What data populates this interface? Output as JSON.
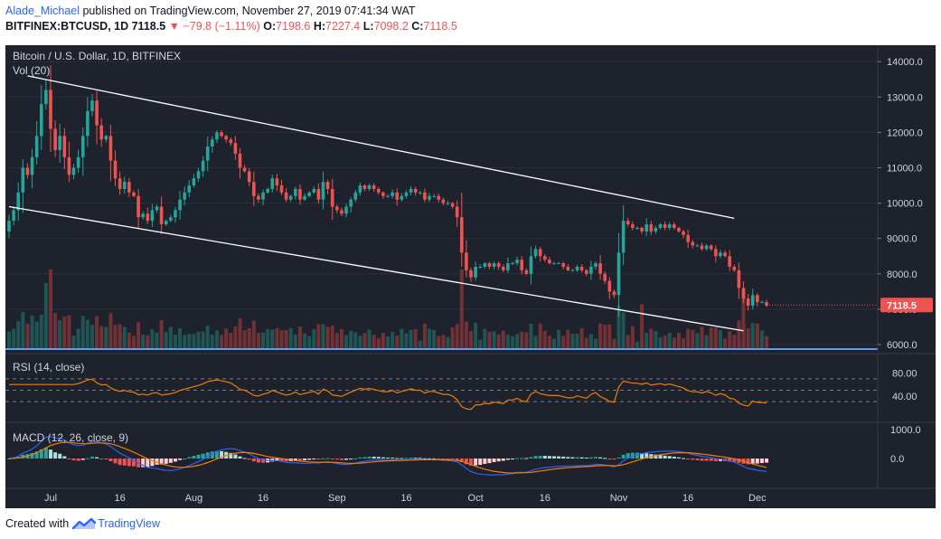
{
  "header": {
    "author": "Alade_Michael",
    "published_text": "published on TradingView.com, November 27, 2019 07:41:34 WAT",
    "symbol_line": "BITFINEX:BTCUSD, 1D",
    "last": "7118.5",
    "change": "▼ −79.8 (−1.11%)",
    "open_label": "O:",
    "open": "7198.6",
    "high_label": "H:",
    "high": "7227.4",
    "low_label": "L:",
    "low": "7098.2",
    "close_label": "C:",
    "close": "7118.5"
  },
  "footer": {
    "created_with": "Created with",
    "brand": "TradingView"
  },
  "colors": {
    "bg": "#1e222d",
    "up": "#26a69a",
    "down": "#ef5350",
    "rsi": "#f57c00",
    "macd": "#2962ff",
    "signal": "#f57c00",
    "channel": "#ffffff",
    "price_label": "#ef5350"
  },
  "chart_data": {
    "type": "candlestick",
    "title": "Bitcoin / U.S. Dollar, 1D, BITFINEX",
    "volume_label": "Vol (20)",
    "price_axis": {
      "ticks": [
        "14000.0",
        "13000.0",
        "12000.0",
        "11000.0",
        "10000.0",
        "9000.0",
        "8000.0",
        "7000.0",
        "6000.0"
      ],
      "ylim": [
        6000,
        14500
      ],
      "last_price_label": "7118.5"
    },
    "x_axis": {
      "ticks": [
        "Jul",
        "16",
        "Aug",
        "16",
        "Sep",
        "16",
        "Oct",
        "16",
        "Nov",
        "16",
        "Dec"
      ],
      "start_date": "2019-06-22"
    },
    "closes": [
      9500,
      9800,
      10300,
      11000,
      10800,
      11300,
      11900,
      12800,
      13200,
      12100,
      11500,
      11900,
      11300,
      10800,
      11000,
      11300,
      11900,
      12600,
      12900,
      12200,
      11800,
      11900,
      11200,
      10700,
      10400,
      10600,
      10300,
      10200,
      9600,
      9700,
      9500,
      9800,
      9900,
      9400,
      9500,
      9600,
      9800,
      10100,
      10300,
      10500,
      10700,
      10900,
      11200,
      11600,
      11800,
      12000,
      11900,
      11800,
      11700,
      11400,
      11000,
      10900,
      10600,
      10200,
      10100,
      10300,
      10400,
      10700,
      10500,
      10300,
      10100,
      10200,
      10400,
      10100,
      10200,
      10300,
      10400,
      10100,
      10600,
      10400,
      9900,
      9800,
      9700,
      9900,
      10100,
      10300,
      10500,
      10400,
      10500,
      10400,
      10300,
      10200,
      10200,
      10300,
      10100,
      10200,
      10300,
      10400,
      10300,
      10300,
      10100,
      10200,
      10200,
      10100,
      10000,
      10000,
      9900,
      9600,
      8600,
      8100,
      7900,
      8200,
      8200,
      8300,
      8200,
      8300,
      8200,
      8100,
      8300,
      8300,
      8400,
      8100,
      8000,
      8500,
      8700,
      8500,
      8400,
      8300,
      8300,
      8300,
      8200,
      8100,
      8100,
      8200,
      8100,
      8000,
      8200,
      8300,
      8000,
      7800,
      7500,
      7400,
      8600,
      9500,
      9400,
      9300,
      9300,
      9200,
      9400,
      9200,
      9300,
      9400,
      9300,
      9400,
      9300,
      9200,
      9100,
      8900,
      8800,
      8800,
      8700,
      8800,
      8700,
      8500,
      8600,
      8500,
      8200,
      8100,
      7600,
      7300,
      7100,
      7400,
      7200,
      7200,
      7100
    ],
    "channel": {
      "upper": [
        [
          "2019-06-26",
          13600
        ],
        [
          "2019-11-26",
          9570
        ]
      ],
      "lower": [
        [
          "2019-06-22",
          9900
        ],
        [
          "2019-11-28",
          6390
        ]
      ]
    },
    "rsi": {
      "label": "RSI (14, close)",
      "ticks": [
        "80.00",
        "40.00"
      ],
      "bands": [
        70,
        50,
        30
      ],
      "ylim": [
        0,
        100
      ]
    },
    "macd": {
      "label": "MACD (12, 26, close, 9)",
      "ticks": [
        "1000.0",
        "0.0"
      ],
      "ylim": [
        -2000,
        1500
      ]
    }
  }
}
